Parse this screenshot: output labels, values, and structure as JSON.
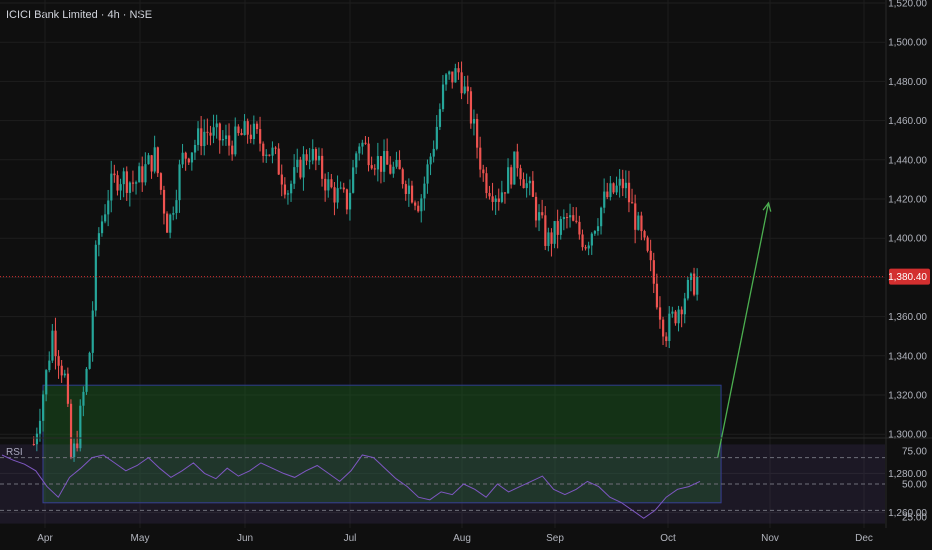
{
  "chart_data": {
    "type": "candlestick",
    "title": "ICICI Bank Limited · 4h · NSE",
    "y_axis": {
      "range": [
        1250,
        1525
      ],
      "ticks": [
        "1,260.00",
        "1,280.00",
        "1,300.00",
        "1,320.00",
        "1,340.00",
        "1,360.00",
        "1,380.00",
        "1,400.00",
        "1,420.00",
        "1,440.00",
        "1,460.00",
        "1,480.00",
        "1,500.00",
        "1,520.00"
      ]
    },
    "x_axis": {
      "labels": [
        "Apr",
        "May",
        "Jun",
        "Jul",
        "Aug",
        "Sep",
        "Oct",
        "Nov",
        "Dec"
      ]
    },
    "last_price": {
      "label": "1,380.40",
      "value": 1380.4,
      "color": "#d32f2f"
    },
    "colors": {
      "up": "#26a69a",
      "down": "#ef5350",
      "zone": "#1b5e20",
      "arrow": "#4caf50",
      "rsi": "#7e57c2"
    },
    "price_path": [
      {
        "date": "Mar 28",
        "value": 1295
      },
      {
        "date": "Apr 01",
        "value": 1330
      },
      {
        "date": "Apr 03",
        "value": 1352
      },
      {
        "date": "Apr 07",
        "value": 1328
      },
      {
        "date": "Apr 09",
        "value": 1285
      },
      {
        "date": "Apr 11",
        "value": 1300
      },
      {
        "date": "Apr 15",
        "value": 1345
      },
      {
        "date": "Apr 17",
        "value": 1398
      },
      {
        "date": "Apr 21",
        "value": 1425
      },
      {
        "date": "Apr 24",
        "value": 1432
      },
      {
        "date": "Apr 29",
        "value": 1428
      },
      {
        "date": "May 05",
        "value": 1442
      },
      {
        "date": "May 09",
        "value": 1405
      },
      {
        "date": "May 13",
        "value": 1440
      },
      {
        "date": "May 20",
        "value": 1455
      },
      {
        "date": "May 27",
        "value": 1448
      },
      {
        "date": "Jun 02",
        "value": 1455
      },
      {
        "date": "Jun 09",
        "value": 1442
      },
      {
        "date": "Jun 13",
        "value": 1425
      },
      {
        "date": "Jun 19",
        "value": 1445
      },
      {
        "date": "Jun 25",
        "value": 1425
      },
      {
        "date": "Jun 30",
        "value": 1418
      },
      {
        "date": "Jul 03",
        "value": 1450
      },
      {
        "date": "Jul 08",
        "value": 1440
      },
      {
        "date": "Jul 15",
        "value": 1432
      },
      {
        "date": "Jul 20",
        "value": 1418
      },
      {
        "date": "Jul 24",
        "value": 1450
      },
      {
        "date": "Jul 27",
        "value": 1480
      },
      {
        "date": "Jul 31",
        "value": 1485
      },
      {
        "date": "Aug 04",
        "value": 1460
      },
      {
        "date": "Aug 08",
        "value": 1430
      },
      {
        "date": "Aug 13",
        "value": 1422
      },
      {
        "date": "Aug 19",
        "value": 1440
      },
      {
        "date": "Aug 24",
        "value": 1420
      },
      {
        "date": "Aug 29",
        "value": 1398
      },
      {
        "date": "Sep 04",
        "value": 1410
      },
      {
        "date": "Sep 09",
        "value": 1398
      },
      {
        "date": "Sep 14",
        "value": 1420
      },
      {
        "date": "Sep 19",
        "value": 1428
      },
      {
        "date": "Sep 22",
        "value": 1410
      },
      {
        "date": "Sep 26",
        "value": 1385
      },
      {
        "date": "Sep 30",
        "value": 1352
      },
      {
        "date": "Oct 03",
        "value": 1362
      },
      {
        "date": "Oct 06",
        "value": 1372
      },
      {
        "date": "Oct 10",
        "value": 1380
      }
    ],
    "demand_zone": {
      "x_start": "Apr 01",
      "x_end": "Oct 15",
      "y_low": 1265,
      "y_high": 1325
    },
    "projection_arrow": {
      "from": {
        "date": "Oct 10",
        "value": 1288
      },
      "to": {
        "date": "Oct 20",
        "value": 1418
      }
    },
    "rsi": {
      "label": "RSI",
      "ticks": [
        "75.00",
        "50.00",
        "25.00"
      ],
      "levels": [
        70,
        50,
        30
      ],
      "range": [
        20,
        80
      ],
      "values": [
        72,
        68,
        65,
        60,
        48,
        40,
        55,
        62,
        70,
        72,
        66,
        60,
        64,
        70,
        62,
        55,
        60,
        66,
        58,
        54,
        62,
        56,
        60,
        66,
        62,
        58,
        55,
        60,
        64,
        58,
        52,
        60,
        72,
        70,
        62,
        54,
        48,
        40,
        38,
        44,
        42,
        50,
        46,
        40,
        50,
        44,
        48,
        52,
        56,
        46,
        42,
        46,
        52,
        48,
        40,
        36,
        30,
        24,
        30,
        40,
        46,
        48,
        52
      ]
    }
  }
}
